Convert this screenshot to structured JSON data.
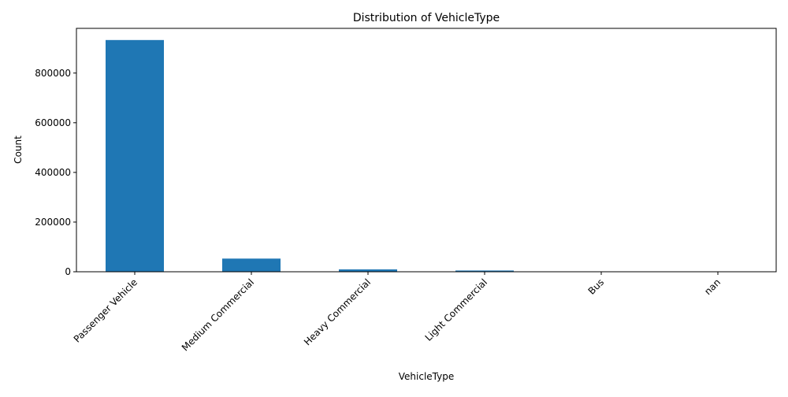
{
  "chart_data": {
    "type": "bar",
    "title": "Distribution of VehicleType",
    "xlabel": "VehicleType",
    "ylabel": "Count",
    "categories": [
      "Passenger Vehicle",
      "Medium Commercial",
      "Heavy Commercial",
      "Light Commercial",
      "Bus",
      "nan"
    ],
    "values": [
      933000,
      53000,
      9500,
      5000,
      1500,
      1000
    ],
    "ylim": [
      0,
      980000
    ],
    "yticks": [
      0,
      200000,
      400000,
      600000,
      800000
    ],
    "grid": false,
    "legend": "none",
    "bar_color": "#1f77b4"
  }
}
